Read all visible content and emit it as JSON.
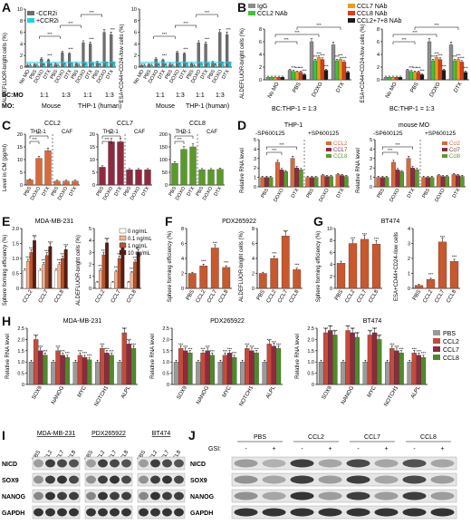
{
  "panel_labels": {
    "A": "A",
    "B": "B",
    "C": "C",
    "D": "D",
    "E": "E",
    "F": "F",
    "G": "G",
    "H": "H",
    "I": "I",
    "J": "J"
  },
  "panelA": {
    "legend": [
      {
        "name": "-CCR2i",
        "color": "#6e6e6e"
      },
      {
        "name": "+CCR2i",
        "color": "#18d4ea"
      }
    ],
    "ylabel_left": "ALDEFLUOR-bright cells (%)",
    "ylabel_right": "ESA+CD44+CD24-/low cells (%)",
    "xcats": [
      "No MO",
      "PBS",
      "DOXO",
      "DTX",
      "PBS",
      "DOXO",
      "DTX",
      "PBS",
      "DOXO",
      "DTX",
      "PBS",
      "DOXO",
      "DTX"
    ],
    "bc_mo_row": [
      "BC:MO",
      "1:1",
      "1:3",
      "1:1",
      "1:3"
    ],
    "mo_row": [
      "MO:",
      "Mouse",
      "THP-1 (human)"
    ],
    "sig": "***"
  },
  "panelB": {
    "legend": [
      {
        "name": "IgG",
        "color": "#8c8c8c"
      },
      {
        "name": "CCL2 NAb",
        "color": "#38c832"
      },
      {
        "name": "CCL7 NAb",
        "color": "#f29a18"
      },
      {
        "name": "CCL8 NAb",
        "color": "#e23a1a"
      },
      {
        "name": "CCL2+7+8 NAb",
        "color": "#1a1a1a"
      }
    ],
    "ylabel_left": "ALDEFLUOR-bright cells (%)",
    "ylabel_right": "ESA+CD44+CD24-/low cells (%)",
    "xcats": [
      "No MO",
      "PBS",
      "DOXO",
      "DTX"
    ],
    "caption": "BC:THP-1 = 1:3"
  },
  "panelC": {
    "ylabel": "Level in CM (pg/ml)",
    "groups": [
      {
        "title": "CCL2",
        "color": "#d76a3a",
        "sub": [
          "THP-1",
          "CAF"
        ],
        "cats": [
          "PBS",
          "DOXO",
          "DTX",
          "PBS",
          "DOXO",
          "DTX"
        ],
        "values": [
          2,
          10.5,
          13.5,
          1.5,
          1.5,
          1.5
        ],
        "yticks": [
          "0",
          "5",
          "10",
          "15",
          "20"
        ]
      },
      {
        "title": "CCL7",
        "color": "#8e2a40",
        "sub": [
          "THP-1",
          "CAF"
        ],
        "cats": [
          "PBS",
          "DOXO",
          "DTX",
          "PBS",
          "DOXO",
          "DTX"
        ],
        "values": [
          7,
          17,
          17,
          6,
          6,
          6
        ],
        "yticks": [
          "0",
          "5",
          "10",
          "15",
          "20"
        ]
      },
      {
        "title": "CCL8",
        "color": "#5a9a2a",
        "sub": [
          "THP-1",
          "CAF"
        ],
        "cats": [
          "PBS",
          "DOXO",
          "DTX",
          "PBS",
          "DOXO",
          "DTX"
        ],
        "values": [
          85,
          140,
          150,
          60,
          60,
          62
        ],
        "yticks": [
          "0",
          "50",
          "100",
          "150",
          "200"
        ]
      }
    ]
  },
  "panelD": {
    "ylabel": "Relative RNA level",
    "left_title": "THP-1",
    "right_title": "mouse MO",
    "minus": "-SP600125",
    "plus": "+SP600125",
    "legend_left": [
      "CCL2",
      "CCL7",
      "CCL8"
    ],
    "legend_right": [
      "Ccl2",
      "Ccl7",
      "Ccl8"
    ],
    "cats": [
      "PBS",
      "DOXO",
      "DTX",
      "PBS",
      "DOXO",
      "DTX"
    ],
    "yticks": [
      "0",
      "1",
      "2",
      "3",
      "4",
      "5"
    ]
  },
  "panelE": {
    "title": "MDA-MB-231",
    "ylabel_left": "Sphere forming efficiency (%)",
    "ylabel_right": "ALDEFLUOR-bright cells (%)",
    "legend": [
      {
        "name": "0 ng/mL",
        "color": "#ffffff"
      },
      {
        "name": "0.1 ng/mL",
        "color": "#f0b190"
      },
      {
        "name": "1 ng/mL",
        "color": "#b8542a"
      },
      {
        "name": "10 ng/mL",
        "color": "#5a1a0e"
      }
    ],
    "cats": [
      "CCL2",
      "CCL7",
      "CCL8"
    ]
  },
  "panelF": {
    "title": "PDX265922",
    "ylabel_left": "Sphere forming efficiency (%)",
    "ylabel_right": "ALDEFLUOR-bright cells (%)",
    "cats": [
      "PBS",
      "CCL2",
      "CCL7",
      "CCL8"
    ],
    "left_values": [
      2,
      3,
      5.4,
      2.8
    ],
    "right_values": [
      2,
      4,
      7,
      2.5
    ]
  },
  "panelG": {
    "title": "BT474",
    "ylabel_left": "Sphere forming efficiency (%)",
    "ylabel_right": "ESA+CD44+CD24-/low cells",
    "cats": [
      "PBS",
      "CCL2",
      "CCL7",
      "CCL8"
    ],
    "left_values": [
      4.2,
      7.5,
      8.2,
      7.4
    ],
    "right_values": [
      0.2,
      0.6,
      3.1,
      1.8
    ]
  },
  "panelH": {
    "ylabel": "Relative RNA level",
    "blocks": [
      "MDA-MB-231",
      "PDX265922",
      "BT474"
    ],
    "genes": [
      "SOX9",
      "NANOG",
      "MYC",
      "NOTCH1",
      "ALPL"
    ],
    "legend": [
      {
        "name": "PBS",
        "color": "#9a9a9a"
      },
      {
        "name": "CCL2",
        "color": "#c64a3a"
      },
      {
        "name": "CCL7",
        "color": "#8e2a40"
      },
      {
        "name": "CCL8",
        "color": "#4f8a2a"
      }
    ],
    "values": [
      [
        [
          1,
          2,
          1.5,
          1.3
        ],
        [
          1,
          1.5,
          1.3,
          1.2
        ],
        [
          1,
          1.3,
          1.2,
          1.1
        ],
        [
          1,
          1.6,
          1.4,
          1.3
        ],
        [
          1,
          2.3,
          1.8,
          1.6
        ]
      ],
      [
        [
          1,
          1.6,
          1.5,
          1.4
        ],
        [
          1,
          1.4,
          1.5,
          1.3
        ],
        [
          1,
          1.3,
          1.4,
          1.2
        ],
        [
          1,
          1.6,
          1.5,
          1.4
        ],
        [
          1,
          1.8,
          1.7,
          1.6
        ]
      ],
      [
        [
          1,
          2.3,
          2.4,
          2.2
        ],
        [
          1,
          2.4,
          2.3,
          2.1
        ],
        [
          1,
          2.2,
          2.3,
          2.0
        ],
        [
          1,
          1.6,
          1.5,
          1.4
        ],
        [
          1,
          1.4,
          1.3,
          1.2
        ]
      ]
    ]
  },
  "panelI": {
    "blocks": [
      "MDA-MB-231",
      "PDX265922",
      "BT474"
    ],
    "lanes": [
      "PBS",
      "CCL2",
      "CCL7",
      "CCL8"
    ],
    "rows": [
      "NICD",
      "SOX9",
      "NANOG",
      "GAPDH"
    ]
  },
  "panelJ": {
    "groups": [
      "PBS",
      "CCL2",
      "CCL7",
      "CCL8"
    ],
    "gsi_label": "GSI:",
    "gsi": [
      "-",
      "+",
      "-",
      "+",
      "-",
      "+",
      "-",
      "+"
    ],
    "rows": [
      "NICD",
      "SOX9",
      "NANOG",
      "GAPDH"
    ]
  }
}
